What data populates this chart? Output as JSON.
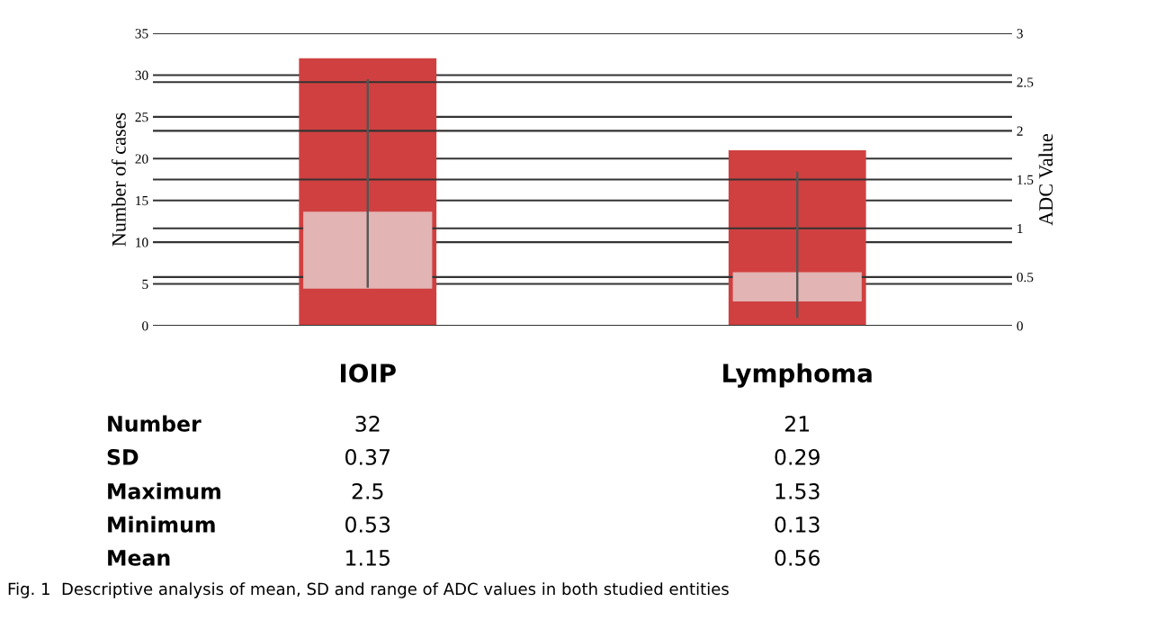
{
  "chart_data": {
    "type": "bar",
    "categories": [
      "IOIP",
      "Lymphoma"
    ],
    "ylabel": "Number of cases",
    "y2label": "ADC Value",
    "series": [
      {
        "color": "#d04040",
        "values": [
          32,
          21
        ]
      },
      {
        "axis": "y2",
        "color": "#e2b4b4",
        "base": [
          0.38,
          0.25
        ],
        "values": [
          0.79,
          0.3
        ]
      },
      {
        "axis": "y2",
        "color": "#555555",
        "base": [
          0.39,
          0.08
        ],
        "values": [
          2.14,
          1.5
        ]
      }
    ],
    "ylim": [
      0,
      35
    ],
    "yticks": [
      0,
      5,
      10,
      15,
      20,
      25,
      30,
      35
    ],
    "y2lim": [
      0,
      3
    ],
    "y2ticks": [
      0,
      0.5,
      1,
      1.5,
      2,
      2.5,
      3
    ],
    "grid": true,
    "annotations": [
      "Number",
      "32",
      "21",
      "SD",
      "0.37",
      "0.29",
      "Maximum",
      "2.5",
      "1.53",
      "Minimum",
      "0.53",
      "0.13",
      "Mean",
      "1.15",
      "0.56",
      "Fig. 1  Descriptive analysis of mean, SD and range of ADC values in both studied entities"
    ]
  }
}
